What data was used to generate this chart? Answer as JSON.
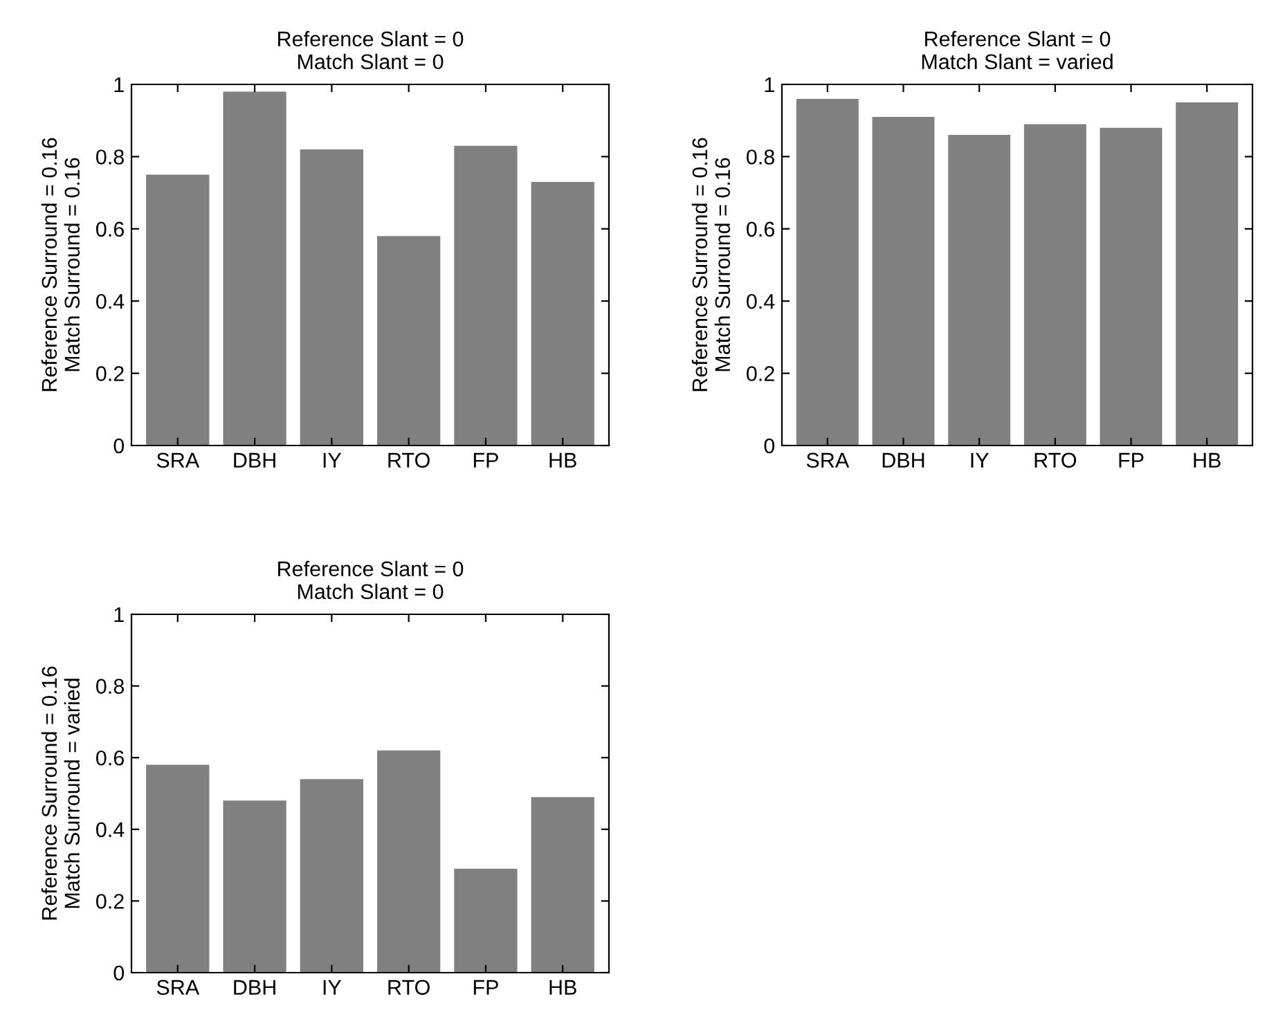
{
  "chart_data": [
    {
      "type": "bar",
      "title": "Reference Slant = 0\nMatch Slant = 0",
      "ylabel": "Reference Surround = 0.16\nMatch Surround = 0.16",
      "categories": [
        "SRA",
        "DBH",
        "IY",
        "RTO",
        "FP",
        "HB"
      ],
      "values": [
        0.75,
        0.98,
        0.82,
        0.58,
        0.83,
        0.73
      ],
      "color": "#808080",
      "ylim": [
        0,
        1
      ],
      "yticks": [
        0,
        0.2,
        0.4,
        0.6,
        0.8,
        1
      ],
      "grid": false,
      "legend": false
    },
    {
      "type": "bar",
      "title": "Reference Slant = 0\nMatch Slant = varied",
      "ylabel": "Reference Surround = 0.16\nMatch Surround = 0.16",
      "categories": [
        "SRA",
        "DBH",
        "IY",
        "RTO",
        "FP",
        "HB"
      ],
      "values": [
        0.96,
        0.91,
        0.86,
        0.89,
        0.88,
        0.95
      ],
      "color": "#808080",
      "ylim": [
        0,
        1
      ],
      "yticks": [
        0,
        0.2,
        0.4,
        0.6,
        0.8,
        1
      ],
      "grid": false,
      "legend": false
    },
    {
      "type": "bar",
      "title": "Reference Slant = 0\nMatch Slant = 0",
      "ylabel": "Reference Surround = 0.16\nMatch Surround = varied",
      "categories": [
        "SRA",
        "DBH",
        "IY",
        "RTO",
        "FP",
        "HB"
      ],
      "values": [
        0.58,
        0.48,
        0.54,
        0.62,
        0.29,
        0.49
      ],
      "color": "#808080",
      "ylim": [
        0,
        1
      ],
      "yticks": [
        0,
        0.2,
        0.4,
        0.6,
        0.8,
        1
      ],
      "grid": false,
      "legend": false
    }
  ]
}
